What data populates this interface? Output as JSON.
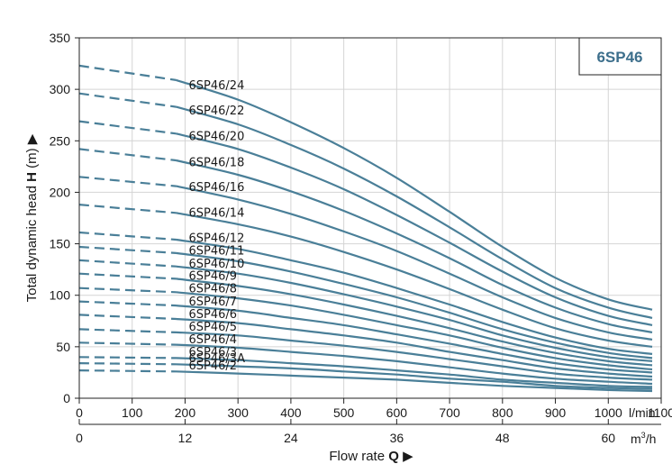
{
  "chart_data": {
    "type": "line",
    "title": "6SP46",
    "xlabel": "Flow rate",
    "xlabel_symbol": "Q",
    "ylabel": "Total dynamic head",
    "ylabel_symbol": "H",
    "ylabel_unit": "(m)",
    "x_unit_primary": "l/min",
    "x_unit_secondary": "m³/h",
    "xlim": [
      0,
      1100
    ],
    "ylim": [
      0,
      350
    ],
    "x_ticks_lmin": [
      0,
      100,
      200,
      300,
      400,
      500,
      600,
      700,
      800,
      900,
      1000,
      1100
    ],
    "x_ticks_m3h": [
      0,
      12,
      24,
      36,
      48,
      60
    ],
    "y_ticks": [
      0,
      50,
      100,
      150,
      200,
      250,
      300,
      350
    ],
    "grid": true,
    "dashed_range_lmin": [
      0,
      183
    ],
    "series": [
      {
        "name": "6SP46/24",
        "values": [
          {
            "x": 0,
            "y": 323
          },
          {
            "x": 183,
            "y": 309
          },
          {
            "x": 300,
            "y": 290
          },
          {
            "x": 400,
            "y": 268
          },
          {
            "x": 500,
            "y": 243
          },
          {
            "x": 600,
            "y": 214
          },
          {
            "x": 700,
            "y": 181
          },
          {
            "x": 800,
            "y": 147
          },
          {
            "x": 900,
            "y": 117
          },
          {
            "x": 1000,
            "y": 96
          },
          {
            "x": 1083,
            "y": 86
          }
        ]
      },
      {
        "name": "6SP46/22",
        "values": [
          {
            "x": 0,
            "y": 296
          },
          {
            "x": 183,
            "y": 283
          },
          {
            "x": 300,
            "y": 266
          },
          {
            "x": 400,
            "y": 246
          },
          {
            "x": 500,
            "y": 223
          },
          {
            "x": 600,
            "y": 196
          },
          {
            "x": 700,
            "y": 166
          },
          {
            "x": 800,
            "y": 135
          },
          {
            "x": 900,
            "y": 107
          },
          {
            "x": 1000,
            "y": 88
          },
          {
            "x": 1083,
            "y": 78
          }
        ]
      },
      {
        "name": "6SP46/20",
        "values": [
          {
            "x": 0,
            "y": 269
          },
          {
            "x": 183,
            "y": 257
          },
          {
            "x": 300,
            "y": 242
          },
          {
            "x": 400,
            "y": 224
          },
          {
            "x": 500,
            "y": 203
          },
          {
            "x": 600,
            "y": 178
          },
          {
            "x": 700,
            "y": 151
          },
          {
            "x": 800,
            "y": 123
          },
          {
            "x": 900,
            "y": 98
          },
          {
            "x": 1000,
            "y": 80
          },
          {
            "x": 1083,
            "y": 71
          }
        ]
      },
      {
        "name": "6SP46/18",
        "values": [
          {
            "x": 0,
            "y": 242
          },
          {
            "x": 183,
            "y": 231
          },
          {
            "x": 300,
            "y": 217
          },
          {
            "x": 400,
            "y": 201
          },
          {
            "x": 500,
            "y": 182
          },
          {
            "x": 600,
            "y": 160
          },
          {
            "x": 700,
            "y": 136
          },
          {
            "x": 800,
            "y": 110
          },
          {
            "x": 900,
            "y": 88
          },
          {
            "x": 1000,
            "y": 72
          },
          {
            "x": 1083,
            "y": 64
          }
        ]
      },
      {
        "name": "6SP46/16",
        "values": [
          {
            "x": 0,
            "y": 215
          },
          {
            "x": 183,
            "y": 206
          },
          {
            "x": 300,
            "y": 193
          },
          {
            "x": 400,
            "y": 179
          },
          {
            "x": 500,
            "y": 162
          },
          {
            "x": 600,
            "y": 143
          },
          {
            "x": 700,
            "y": 121
          },
          {
            "x": 800,
            "y": 98
          },
          {
            "x": 900,
            "y": 78
          },
          {
            "x": 1000,
            "y": 64
          },
          {
            "x": 1083,
            "y": 57
          }
        ]
      },
      {
        "name": "6SP46/14",
        "values": [
          {
            "x": 0,
            "y": 188
          },
          {
            "x": 183,
            "y": 180
          },
          {
            "x": 300,
            "y": 169
          },
          {
            "x": 400,
            "y": 157
          },
          {
            "x": 500,
            "y": 142
          },
          {
            "x": 600,
            "y": 125
          },
          {
            "x": 700,
            "y": 106
          },
          {
            "x": 800,
            "y": 86
          },
          {
            "x": 900,
            "y": 68
          },
          {
            "x": 1000,
            "y": 56
          },
          {
            "x": 1083,
            "y": 50
          }
        ]
      },
      {
        "name": "6SP46/12",
        "values": [
          {
            "x": 0,
            "y": 161
          },
          {
            "x": 183,
            "y": 154
          },
          {
            "x": 300,
            "y": 145
          },
          {
            "x": 400,
            "y": 134
          },
          {
            "x": 500,
            "y": 122
          },
          {
            "x": 600,
            "y": 107
          },
          {
            "x": 700,
            "y": 91
          },
          {
            "x": 800,
            "y": 74
          },
          {
            "x": 900,
            "y": 59
          },
          {
            "x": 1000,
            "y": 48
          },
          {
            "x": 1083,
            "y": 43
          }
        ]
      },
      {
        "name": "6SP46/11",
        "values": [
          {
            "x": 0,
            "y": 147
          },
          {
            "x": 183,
            "y": 141
          },
          {
            "x": 300,
            "y": 133
          },
          {
            "x": 400,
            "y": 123
          },
          {
            "x": 500,
            "y": 111
          },
          {
            "x": 600,
            "y": 98
          },
          {
            "x": 700,
            "y": 83
          },
          {
            "x": 800,
            "y": 67
          },
          {
            "x": 900,
            "y": 54
          },
          {
            "x": 1000,
            "y": 44
          },
          {
            "x": 1083,
            "y": 39
          }
        ]
      },
      {
        "name": "6SP46/10",
        "values": [
          {
            "x": 0,
            "y": 134
          },
          {
            "x": 183,
            "y": 128
          },
          {
            "x": 300,
            "y": 121
          },
          {
            "x": 400,
            "y": 112
          },
          {
            "x": 500,
            "y": 101
          },
          {
            "x": 600,
            "y": 89
          },
          {
            "x": 700,
            "y": 76
          },
          {
            "x": 800,
            "y": 61
          },
          {
            "x": 900,
            "y": 49
          },
          {
            "x": 1000,
            "y": 40
          },
          {
            "x": 1083,
            "y": 36
          }
        ]
      },
      {
        "name": "6SP46/9",
        "values": [
          {
            "x": 0,
            "y": 121
          },
          {
            "x": 183,
            "y": 116
          },
          {
            "x": 300,
            "y": 109
          },
          {
            "x": 400,
            "y": 101
          },
          {
            "x": 500,
            "y": 91
          },
          {
            "x": 600,
            "y": 80
          },
          {
            "x": 700,
            "y": 68
          },
          {
            "x": 800,
            "y": 55
          },
          {
            "x": 900,
            "y": 44
          },
          {
            "x": 1000,
            "y": 36
          },
          {
            "x": 1083,
            "y": 32
          }
        ]
      },
      {
        "name": "6SP46/8",
        "values": [
          {
            "x": 0,
            "y": 107
          },
          {
            "x": 183,
            "y": 103
          },
          {
            "x": 300,
            "y": 97
          },
          {
            "x": 400,
            "y": 90
          },
          {
            "x": 500,
            "y": 81
          },
          {
            "x": 600,
            "y": 71
          },
          {
            "x": 700,
            "y": 61
          },
          {
            "x": 800,
            "y": 49
          },
          {
            "x": 900,
            "y": 39
          },
          {
            "x": 1000,
            "y": 32
          },
          {
            "x": 1083,
            "y": 28
          }
        ]
      },
      {
        "name": "6SP46/7",
        "values": [
          {
            "x": 0,
            "y": 94
          },
          {
            "x": 183,
            "y": 90
          },
          {
            "x": 300,
            "y": 85
          },
          {
            "x": 400,
            "y": 78
          },
          {
            "x": 500,
            "y": 71
          },
          {
            "x": 600,
            "y": 62
          },
          {
            "x": 700,
            "y": 53
          },
          {
            "x": 800,
            "y": 43
          },
          {
            "x": 900,
            "y": 34
          },
          {
            "x": 1000,
            "y": 28
          },
          {
            "x": 1083,
            "y": 25
          }
        ]
      },
      {
        "name": "6SP46/6",
        "values": [
          {
            "x": 0,
            "y": 81
          },
          {
            "x": 183,
            "y": 77
          },
          {
            "x": 300,
            "y": 73
          },
          {
            "x": 400,
            "y": 67
          },
          {
            "x": 500,
            "y": 61
          },
          {
            "x": 600,
            "y": 54
          },
          {
            "x": 700,
            "y": 45
          },
          {
            "x": 800,
            "y": 37
          },
          {
            "x": 900,
            "y": 29
          },
          {
            "x": 1000,
            "y": 24
          },
          {
            "x": 1083,
            "y": 21
          }
        ]
      },
      {
        "name": "6SP46/5",
        "values": [
          {
            "x": 0,
            "y": 67
          },
          {
            "x": 183,
            "y": 64
          },
          {
            "x": 300,
            "y": 61
          },
          {
            "x": 400,
            "y": 56
          },
          {
            "x": 500,
            "y": 51
          },
          {
            "x": 600,
            "y": 45
          },
          {
            "x": 700,
            "y": 38
          },
          {
            "x": 800,
            "y": 31
          },
          {
            "x": 900,
            "y": 24
          },
          {
            "x": 1000,
            "y": 20
          },
          {
            "x": 1083,
            "y": 18
          }
        ]
      },
      {
        "name": "6SP46/4",
        "values": [
          {
            "x": 0,
            "y": 54
          },
          {
            "x": 183,
            "y": 52
          },
          {
            "x": 300,
            "y": 49
          },
          {
            "x": 400,
            "y": 45
          },
          {
            "x": 500,
            "y": 41
          },
          {
            "x": 600,
            "y": 36
          },
          {
            "x": 700,
            "y": 30
          },
          {
            "x": 800,
            "y": 24
          },
          {
            "x": 900,
            "y": 19
          },
          {
            "x": 1000,
            "y": 16
          },
          {
            "x": 1083,
            "y": 14
          }
        ]
      },
      {
        "name": "6SP46/3",
        "values": [
          {
            "x": 0,
            "y": 40
          },
          {
            "x": 183,
            "y": 39
          },
          {
            "x": 300,
            "y": 37
          },
          {
            "x": 400,
            "y": 34
          },
          {
            "x": 500,
            "y": 31
          },
          {
            "x": 600,
            "y": 27
          },
          {
            "x": 700,
            "y": 23
          },
          {
            "x": 800,
            "y": 18
          },
          {
            "x": 900,
            "y": 15
          },
          {
            "x": 1000,
            "y": 12
          },
          {
            "x": 1083,
            "y": 11
          }
        ]
      },
      {
        "name": "6SP46/3A",
        "values": [
          {
            "x": 0,
            "y": 34
          },
          {
            "x": 183,
            "y": 33
          },
          {
            "x": 300,
            "y": 31
          },
          {
            "x": 400,
            "y": 29
          },
          {
            "x": 500,
            "y": 26
          },
          {
            "x": 600,
            "y": 23
          },
          {
            "x": 700,
            "y": 19
          },
          {
            "x": 800,
            "y": 16
          },
          {
            "x": 900,
            "y": 12
          },
          {
            "x": 1000,
            "y": 10
          },
          {
            "x": 1083,
            "y": 9
          }
        ]
      },
      {
        "name": "6SP46/2",
        "values": [
          {
            "x": 0,
            "y": 27
          },
          {
            "x": 183,
            "y": 26
          },
          {
            "x": 300,
            "y": 24
          },
          {
            "x": 400,
            "y": 22
          },
          {
            "x": 500,
            "y": 20
          },
          {
            "x": 600,
            "y": 18
          },
          {
            "x": 700,
            "y": 15
          },
          {
            "x": 800,
            "y": 12
          },
          {
            "x": 900,
            "y": 10
          },
          {
            "x": 1000,
            "y": 8
          },
          {
            "x": 1083,
            "y": 7
          }
        ]
      }
    ],
    "colors": {
      "curve": "#4a7f98",
      "badge_text": "#3d6f8c",
      "grid": "#d4d4d4",
      "axis": "#222222"
    }
  }
}
